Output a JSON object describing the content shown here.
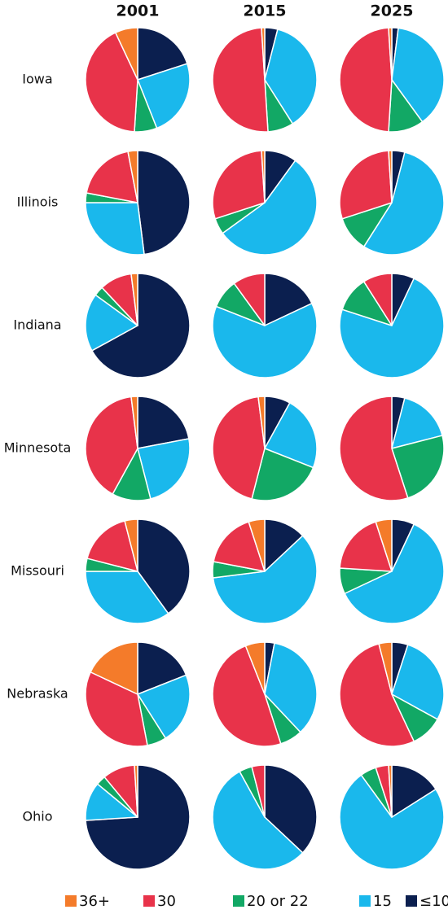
{
  "chart_data": {
    "type": "pie",
    "columns": [
      "2001",
      "2015",
      "2025"
    ],
    "rows": [
      "Iowa",
      "Illinois",
      "Indiana",
      "Minnesota",
      "Missouri",
      "Nebraska",
      "Ohio"
    ],
    "series": [
      {
        "name": "≤10",
        "color": "#0b1f4f"
      },
      {
        "name": "15",
        "color": "#1ab8ec"
      },
      {
        "name": "20 or 22",
        "color": "#12a865"
      },
      {
        "name": "30",
        "color": "#e8334a"
      },
      {
        "name": "36+",
        "color": "#f47b2a"
      }
    ],
    "legend_order": [
      4,
      3,
      2,
      1,
      0
    ],
    "values": [
      [
        [
          20,
          24,
          7,
          42,
          7
        ],
        [
          4,
          37,
          8,
          50,
          1
        ],
        [
          2,
          38,
          11,
          48,
          1
        ]
      ],
      [
        [
          48,
          27,
          3,
          19,
          3
        ],
        [
          10,
          55,
          5,
          29,
          1
        ],
        [
          4,
          55,
          11,
          29,
          1
        ]
      ],
      [
        [
          67,
          18,
          3,
          10,
          2
        ],
        [
          18,
          63,
          9,
          10,
          0
        ],
        [
          7,
          73,
          11,
          9,
          0
        ]
      ],
      [
        [
          22,
          24,
          12,
          40,
          2
        ],
        [
          8,
          23,
          23,
          44,
          2
        ],
        [
          4,
          17,
          24,
          55,
          0
        ]
      ],
      [
        [
          40,
          35,
          4,
          17,
          4
        ],
        [
          13,
          60,
          5,
          17,
          5
        ],
        [
          7,
          61,
          8,
          19,
          5
        ]
      ],
      [
        [
          19,
          22,
          6,
          35,
          18
        ],
        [
          3,
          35,
          7,
          49,
          6
        ],
        [
          5,
          28,
          10,
          53,
          4
        ]
      ],
      [
        [
          74,
          12,
          3,
          10,
          1
        ],
        [
          37,
          55,
          4,
          4,
          0
        ],
        [
          16,
          74,
          5,
          4,
          1
        ]
      ]
    ]
  }
}
